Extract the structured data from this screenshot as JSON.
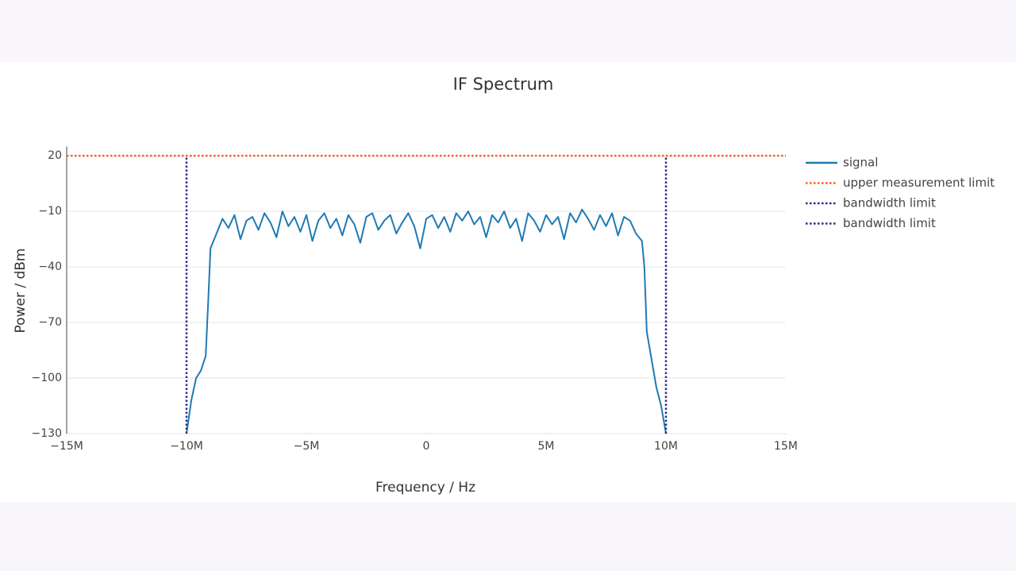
{
  "chart_data": {
    "type": "line",
    "title": "IF Spectrum",
    "x_label": "Frequency / Hz",
    "y_label": "Power / dBm",
    "xlim": [
      -15000000,
      15000000
    ],
    "xticks": [
      {
        "value": -15000000,
        "label": "−15M"
      },
      {
        "value": -10000000,
        "label": "−10M"
      },
      {
        "value": -5000000,
        "label": "−5M"
      },
      0,
      {
        "value": 5000000,
        "label": "5M"
      },
      {
        "value": 10000000,
        "label": "10M"
      },
      {
        "value": 15000000,
        "label": "15M"
      }
    ],
    "ylim": [
      -130,
      25
    ],
    "yticks": [
      20,
      {
        "value": -10,
        "label": "−10"
      },
      {
        "value": -40,
        "label": "−40"
      },
      {
        "value": -70,
        "label": "−70"
      },
      {
        "value": -100,
        "label": "−100"
      },
      {
        "value": -130,
        "label": "−130"
      }
    ],
    "grid": true,
    "legend": "right",
    "series": [
      {
        "name": "signal",
        "color": "#1f7ab4",
        "dash": "solid",
        "x": [
          -10000000,
          -9800000,
          -9600000,
          -9400000,
          -9200000,
          -9100000,
          -9000000,
          -8750000,
          -8500000,
          -8250000,
          -8000000,
          -7750000,
          -7500000,
          -7250000,
          -7000000,
          -6750000,
          -6500000,
          -6250000,
          -6000000,
          -5750000,
          -5500000,
          -5250000,
          -5000000,
          -4750000,
          -4500000,
          -4250000,
          -4000000,
          -3750000,
          -3500000,
          -3250000,
          -3000000,
          -2750000,
          -2500000,
          -2250000,
          -2000000,
          -1750000,
          -1500000,
          -1250000,
          -1000000,
          -750000,
          -500000,
          -250000,
          0,
          250000,
          500000,
          750000,
          1000000,
          1250000,
          1500000,
          1750000,
          2000000,
          2250000,
          2500000,
          2750000,
          3000000,
          3250000,
          3500000,
          3750000,
          4000000,
          4250000,
          4500000,
          4750000,
          5000000,
          5250000,
          5500000,
          5750000,
          6000000,
          6250000,
          6500000,
          6750000,
          7000000,
          7250000,
          7500000,
          7750000,
          8000000,
          8250000,
          8500000,
          8750000,
          9000000,
          9100000,
          9200000,
          9400000,
          9600000,
          9800000,
          10000000
        ],
        "values": [
          -130,
          -112,
          -100,
          -96,
          -88,
          -60,
          -30,
          -22,
          -14,
          -19,
          -12,
          -25,
          -15,
          -13,
          -20,
          -11,
          -16,
          -24,
          -10,
          -18,
          -13,
          -21,
          -12,
          -26,
          -15,
          -11,
          -19,
          -14,
          -23,
          -12,
          -17,
          -27,
          -13,
          -11,
          -20,
          -15,
          -12,
          -22,
          -16,
          -11,
          -18,
          -30,
          -14,
          -12,
          -19,
          -13,
          -21,
          -11,
          -15,
          -10,
          -17,
          -13,
          -24,
          -12,
          -16,
          -10,
          -19,
          -14,
          -26,
          -11,
          -15,
          -21,
          -12,
          -17,
          -13,
          -25,
          -11,
          -16,
          -9,
          -14,
          -20,
          -12,
          -18,
          -11,
          -23,
          -13,
          -15,
          -22,
          -26,
          -40,
          -75,
          -90,
          -105,
          -115,
          -130
        ]
      },
      {
        "name": "upper measurement limit",
        "color": "#ff5c26",
        "dash": "dot",
        "x": [
          -15000000,
          15000000
        ],
        "values": [
          20,
          20
        ]
      },
      {
        "name": "bandwidth limit",
        "color": "#2e2a8c",
        "dash": "dot",
        "x": [
          -10000000,
          -10000000
        ],
        "values": [
          -130,
          20
        ]
      },
      {
        "name": "bandwidth limit",
        "color": "#2e2a8c",
        "dash": "dot",
        "x": [
          10000000,
          10000000
        ],
        "values": [
          -130,
          20
        ]
      }
    ]
  }
}
